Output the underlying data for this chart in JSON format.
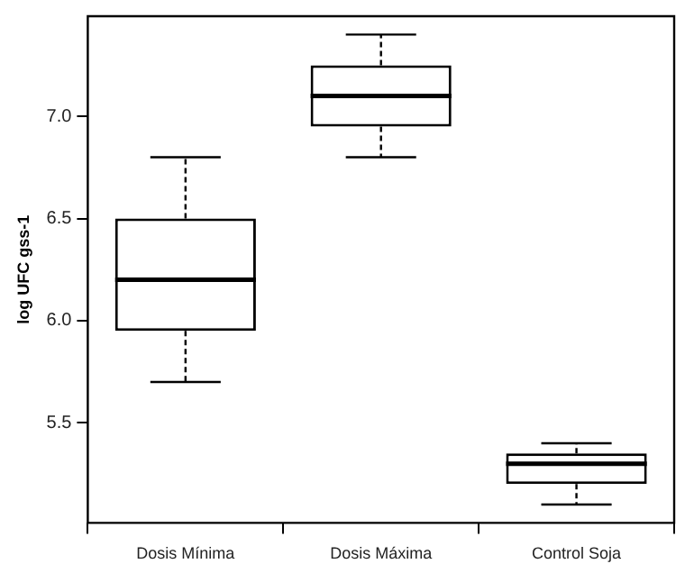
{
  "chart_data": {
    "type": "box",
    "ylabel": "log UFC gss-1",
    "categories": [
      "Dosis Mínima",
      "Dosis Máxima",
      "Control Soja"
    ],
    "boxes": [
      {
        "low": 5.7,
        "q1": 5.95,
        "median": 6.2,
        "q3": 6.5,
        "high": 6.8
      },
      {
        "low": 6.8,
        "q1": 6.95,
        "median": 7.1,
        "q3": 7.25,
        "high": 7.4
      },
      {
        "low": 5.1,
        "q1": 5.2,
        "median": 5.3,
        "q3": 5.35,
        "high": 5.4
      }
    ],
    "color": "#000000",
    "ylim": [
      5.01,
      7.49
    ],
    "yticks": [
      5.5,
      {
        "value": 6,
        "label": "6.0"
      },
      6.5,
      {
        "value": 7,
        "label": "7.0"
      }
    ],
    "grid": false,
    "legend": false
  }
}
